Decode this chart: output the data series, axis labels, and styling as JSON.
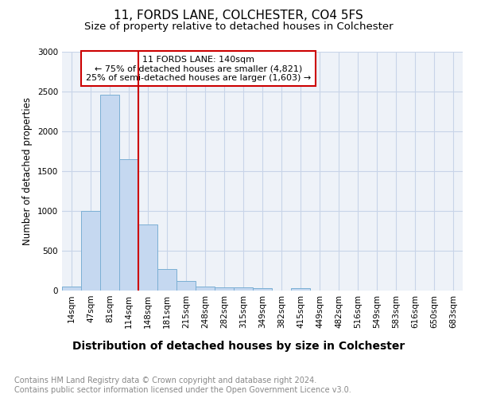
{
  "title": "11, FORDS LANE, COLCHESTER, CO4 5FS",
  "subtitle": "Size of property relative to detached houses in Colchester",
  "xlabel": "Distribution of detached houses by size in Colchester",
  "ylabel": "Number of detached properties",
  "categories": [
    "14sqm",
    "47sqm",
    "81sqm",
    "114sqm",
    "148sqm",
    "181sqm",
    "215sqm",
    "248sqm",
    "282sqm",
    "315sqm",
    "349sqm",
    "382sqm",
    "415sqm",
    "449sqm",
    "482sqm",
    "516sqm",
    "549sqm",
    "583sqm",
    "616sqm",
    "650sqm",
    "683sqm"
  ],
  "values": [
    55,
    1000,
    2460,
    1650,
    830,
    275,
    120,
    55,
    45,
    40,
    35,
    0,
    30,
    0,
    0,
    0,
    0,
    0,
    0,
    0,
    0
  ],
  "bar_color": "#c5d8f0",
  "bar_edge_color": "#7bafd4",
  "vline_color": "#cc0000",
  "vline_pos": 3.5,
  "annotation_text": "11 FORDS LANE: 140sqm\n← 75% of detached houses are smaller (4,821)\n25% of semi-detached houses are larger (1,603) →",
  "annotation_box_color": "#ffffff",
  "annotation_box_edge_color": "#cc0000",
  "ylim": [
    0,
    3000
  ],
  "yticks": [
    0,
    500,
    1000,
    1500,
    2000,
    2500,
    3000
  ],
  "footer_line1": "Contains HM Land Registry data © Crown copyright and database right 2024.",
  "footer_line2": "Contains public sector information licensed under the Open Government Licence v3.0.",
  "bg_color": "#ffffff",
  "plot_bg_color": "#eef2f8",
  "grid_color": "#c8d4e8",
  "title_fontsize": 11,
  "subtitle_fontsize": 9.5,
  "xlabel_fontsize": 10,
  "ylabel_fontsize": 8.5,
  "tick_fontsize": 7.5,
  "annot_fontsize": 8,
  "footer_fontsize": 7
}
